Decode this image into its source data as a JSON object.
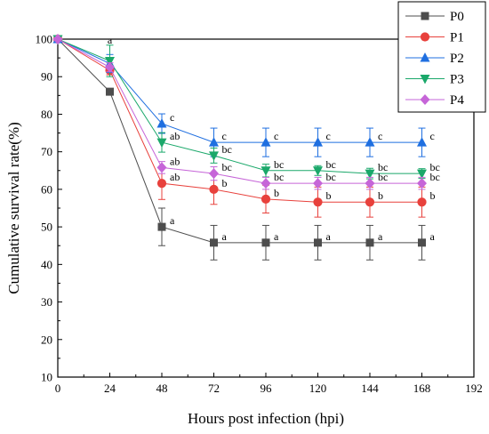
{
  "chart_data": {
    "type": "line",
    "xlabel": "Hours post infection (hpi)",
    "ylabel": "Cumulative survival rate(%)",
    "xlim": [
      0,
      192
    ],
    "ylim": [
      10,
      100
    ],
    "xticks": [
      0,
      24,
      48,
      72,
      96,
      120,
      144,
      168,
      192
    ],
    "yticks": [
      10,
      20,
      30,
      40,
      50,
      60,
      70,
      80,
      90,
      100
    ],
    "grid": false,
    "legend_position": "top-right",
    "x": [
      0,
      24,
      48,
      72,
      96,
      120,
      144,
      168
    ],
    "series": [
      {
        "name": "P0",
        "color": "#4d4d4d",
        "marker": "square",
        "values": [
          100,
          86,
          50,
          45.8,
          45.8,
          45.8,
          45.8,
          45.8
        ],
        "errors": [
          0,
          0,
          5,
          4.6,
          4.6,
          4.6,
          4.6,
          4.6
        ],
        "labels": [
          "",
          "",
          "a",
          "a",
          "a",
          "a",
          "a",
          "a"
        ]
      },
      {
        "name": "P1",
        "color": "#e8413c",
        "marker": "circle",
        "values": [
          100,
          91.7,
          61.6,
          60,
          57.4,
          56.6,
          56.6,
          56.6
        ],
        "errors": [
          0,
          1.2,
          4.3,
          4,
          3.7,
          4,
          4,
          4
        ],
        "labels": [
          "",
          "",
          "ab",
          "b",
          "b",
          "b",
          "b",
          "b"
        ]
      },
      {
        "name": "P2",
        "color": "#1f6fe0",
        "marker": "triangle-up",
        "values": [
          100,
          93.5,
          77.5,
          72.5,
          72.5,
          72.5,
          72.5,
          72.5
        ],
        "errors": [
          0,
          2.4,
          2.6,
          3.8,
          3.8,
          3.8,
          3.8,
          3.8
        ],
        "labels": [
          "",
          "",
          "c",
          "c",
          "c",
          "c",
          "c",
          "c"
        ]
      },
      {
        "name": "P3",
        "color": "#1aa86a",
        "marker": "triangle-down",
        "values": [
          100,
          94.2,
          72.5,
          69,
          65,
          65,
          64.2,
          64.2
        ],
        "errors": [
          0,
          4.2,
          2.6,
          2,
          1.7,
          1.3,
          1.4,
          1.3
        ],
        "labels": [
          "",
          "a",
          "ab",
          "bc",
          "bc",
          "bc",
          "bc",
          "bc"
        ]
      },
      {
        "name": "P4",
        "color": "#c665d8",
        "marker": "diamond",
        "values": [
          100,
          92.5,
          65.8,
          64.2,
          61.6,
          61.6,
          61.6,
          61.6
        ],
        "errors": [
          0,
          1.2,
          1.6,
          1.8,
          1.6,
          1.6,
          1.6,
          1.6
        ],
        "labels": [
          "",
          "",
          "ab",
          "bc",
          "bc",
          "bc",
          "bc",
          "bc"
        ]
      }
    ]
  }
}
